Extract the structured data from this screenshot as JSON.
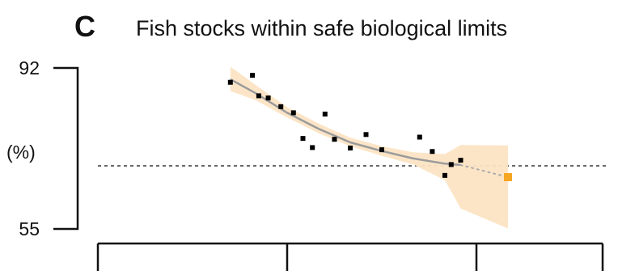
{
  "panel_letter": "C",
  "chart_data": {
    "type": "scatter",
    "title": "Fish stocks within safe biological limits",
    "ylabel": "(%)",
    "xlabel": "",
    "ylim": [
      55,
      92
    ],
    "y_ticks": [
      "92",
      "55"
    ],
    "x_range": [
      1950,
      2030
    ],
    "x_ticks": [
      1950,
      1980,
      2010
    ],
    "x_tick_labels_shown": false,
    "reference_line": {
      "y": 69.5,
      "style": "dashed"
    },
    "series": [
      {
        "type": "scatter",
        "color": "#000000",
        "points": [
          [
            1971,
            88.7
          ],
          [
            1974.5,
            90.3
          ],
          [
            1975.5,
            85.6
          ],
          [
            1977,
            85.1
          ],
          [
            1979,
            83.1
          ],
          [
            1981,
            81.7
          ],
          [
            1982.5,
            75.8
          ],
          [
            1984,
            73.7
          ],
          [
            1986,
            81.4
          ],
          [
            1987.5,
            75.6
          ],
          [
            1990,
            73.6
          ],
          [
            1992.5,
            76.7
          ],
          [
            1995,
            73.2
          ],
          [
            2001,
            76.1
          ],
          [
            2003,
            72.8
          ],
          [
            2005,
            67.3
          ],
          [
            2006,
            69.8
          ],
          [
            2007.5,
            70.8
          ]
        ]
      },
      {
        "type": "fit",
        "color": "#9b9b9b",
        "x": [
          1971,
          1975,
          1980,
          1985,
          1990,
          1995,
          2000,
          2005,
          2007.5
        ],
        "y": [
          89.4,
          86.2,
          81.7,
          78.0,
          74.9,
          72.9,
          71.2,
          70.0,
          69.7
        ],
        "band_lower": [
          86.7,
          84.6,
          80.6,
          77.0,
          74.0,
          71.8,
          69.8,
          66.2,
          59.7
        ],
        "band_upper": [
          92.3,
          88.1,
          83.0,
          79.2,
          76.0,
          74.0,
          72.6,
          72.2,
          74.3
        ]
      },
      {
        "type": "projection",
        "style": "dotted",
        "color": "#aaaaaa",
        "x": [
          2007.5,
          2015
        ],
        "y": [
          69.7,
          66.9
        ]
      },
      {
        "type": "target",
        "color": "#f5a623",
        "points": [
          [
            2015,
            66.9
          ]
        ]
      }
    ]
  }
}
